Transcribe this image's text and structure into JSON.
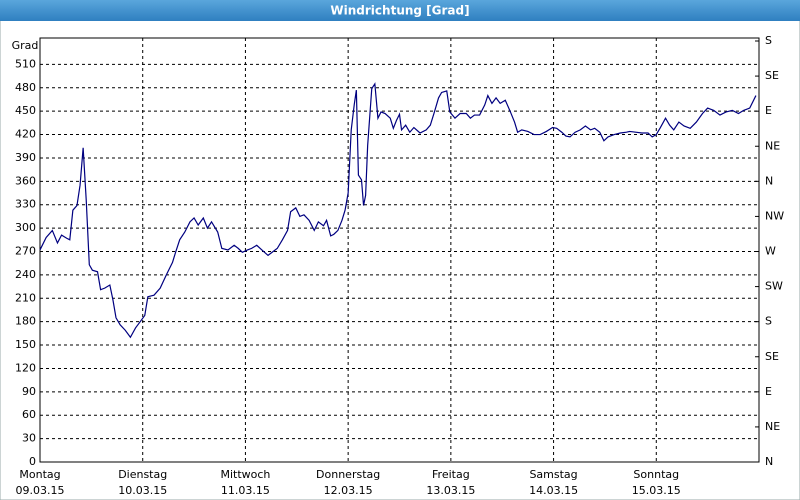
{
  "chart_data": {
    "type": "line",
    "title": "Windrichtung [Grad]",
    "y_label": "Grad",
    "xlim": [
      0,
      7
    ],
    "xticks": [
      {
        "value": 0,
        "label": "Montag"
      },
      {
        "value": 1,
        "label": "Dienstag"
      },
      {
        "value": 2,
        "label": "Mittwoch"
      },
      {
        "value": 3,
        "label": "Donnerstag"
      },
      {
        "value": 4,
        "label": "Freitag"
      },
      {
        "value": 5,
        "label": "Samstag"
      },
      {
        "value": 6,
        "label": "Sonntag"
      }
    ],
    "xtick_dates": [
      "09.03.15",
      "10.03.15",
      "11.03.15",
      "12.03.15",
      "13.03.15",
      "14.03.15",
      "15.03.15"
    ],
    "ylim": [
      0,
      540
    ],
    "yticks": [
      0,
      30,
      60,
      90,
      120,
      150,
      180,
      210,
      240,
      270,
      300,
      330,
      360,
      390,
      420,
      450,
      480,
      510
    ],
    "y2lim": [
      0,
      540
    ],
    "y2ticks": [
      {
        "value": 0,
        "label": "N"
      },
      {
        "value": 45,
        "label": "NE"
      },
      {
        "value": 90,
        "label": "E"
      },
      {
        "value": 135,
        "label": "SE"
      },
      {
        "value": 180,
        "label": "S"
      },
      {
        "value": 225,
        "label": "SW"
      },
      {
        "value": 270,
        "label": "W"
      },
      {
        "value": 315,
        "label": "NW"
      },
      {
        "value": 360,
        "label": "N"
      },
      {
        "value": 405,
        "label": "NE"
      },
      {
        "value": 450,
        "label": "E"
      },
      {
        "value": 495,
        "label": "SE"
      },
      {
        "value": 540,
        "label": "S"
      }
    ],
    "grid": true,
    "x": [
      0,
      0.06,
      0.12,
      0.17,
      0.21,
      0.26,
      0.29,
      0.32,
      0.36,
      0.39,
      0.42,
      0.45,
      0.48,
      0.51,
      0.56,
      0.59,
      0.63,
      0.68,
      0.71,
      0.74,
      0.78,
      0.83,
      0.88,
      0.93,
      0.97,
      1.02,
      1.05,
      1.11,
      1.17,
      1.23,
      1.29,
      1.32,
      1.36,
      1.41,
      1.46,
      1.5,
      1.54,
      1.59,
      1.63,
      1.67,
      1.73,
      1.77,
      1.83,
      1.89,
      1.93,
      1.97,
      2.02,
      2.06,
      2.11,
      2.16,
      2.22,
      2.26,
      2.31,
      2.36,
      2.41,
      2.44,
      2.49,
      2.53,
      2.57,
      2.62,
      2.67,
      2.71,
      2.76,
      2.79,
      2.83,
      2.86,
      2.9,
      2.94,
      2.97,
      3.0,
      3.03,
      3.06,
      3.08,
      3.1,
      3.13,
      3.15,
      3.17,
      3.19,
      3.23,
      3.26,
      3.29,
      3.32,
      3.36,
      3.41,
      3.44,
      3.47,
      3.5,
      3.52,
      3.56,
      3.6,
      3.64,
      3.7,
      3.76,
      3.8,
      3.84,
      3.88,
      3.91,
      3.96,
      3.99,
      4.04,
      4.09,
      4.15,
      4.19,
      4.23,
      4.28,
      4.33,
      4.36,
      4.4,
      4.44,
      4.48,
      4.53,
      4.58,
      4.62,
      4.65,
      4.69,
      4.75,
      4.81,
      4.87,
      4.93,
      4.99,
      5.03,
      5.08,
      5.12,
      5.16,
      5.21,
      5.26,
      5.31,
      5.36,
      5.4,
      5.45,
      5.49,
      5.53,
      5.59,
      5.65,
      5.71,
      5.74,
      5.8,
      5.86,
      5.92,
      5.96,
      6.0,
      6.04,
      6.09,
      6.13,
      6.17,
      6.22,
      6.27,
      6.33,
      6.39,
      6.45,
      6.5,
      6.56,
      6.62,
      6.68,
      6.74,
      6.8,
      6.85,
      6.91,
      6.97
    ],
    "series": [
      {
        "color": "#000080",
        "values": [
          272,
          288,
          297,
          281,
          291,
          287,
          285,
          323,
          329,
          355,
          403,
          336,
          253,
          246,
          244,
          221,
          223,
          227,
          208,
          185,
          176,
          169,
          160,
          172,
          179,
          188,
          212,
          214,
          223,
          240,
          256,
          269,
          285,
          295,
          308,
          313,
          304,
          313,
          300,
          308,
          295,
          274,
          272,
          278,
          274,
          269,
          272,
          274,
          278,
          272,
          265,
          269,
          274,
          285,
          297,
          321,
          326,
          315,
          317,
          310,
          297,
          308,
          303,
          310,
          290,
          292,
          297,
          310,
          323,
          345,
          426,
          459,
          477,
          368,
          362,
          329,
          342,
          406,
          479,
          485,
          441,
          449,
          447,
          441,
          428,
          438,
          446,
          426,
          432,
          423,
          429,
          422,
          426,
          432,
          449,
          467,
          474,
          476,
          449,
          441,
          447,
          447,
          441,
          445,
          445,
          458,
          470,
          460,
          467,
          460,
          464,
          449,
          436,
          423,
          426,
          424,
          420,
          420,
          424,
          429,
          428,
          423,
          418,
          417,
          423,
          426,
          431,
          426,
          428,
          423,
          412,
          417,
          420,
          422,
          423,
          424,
          423,
          422,
          422,
          417,
          420,
          429,
          441,
          432,
          426,
          436,
          431,
          428,
          436,
          447,
          454,
          451,
          445,
          449,
          451,
          447,
          451,
          454,
          470
        ]
      }
    ]
  }
}
